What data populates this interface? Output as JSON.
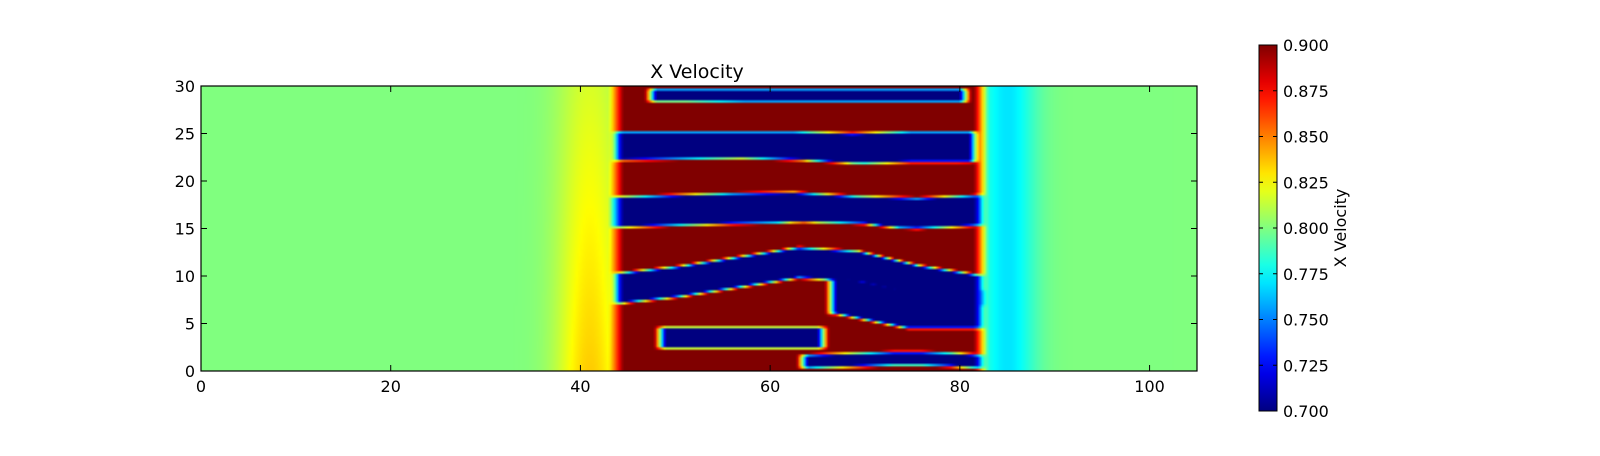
{
  "chart_data": {
    "type": "heatmap",
    "title": "X Velocity",
    "xlabel": "",
    "ylabel": "",
    "xlim": [
      0,
      105
    ],
    "ylim": [
      0,
      30
    ],
    "x_ticks": [
      0,
      20,
      40,
      60,
      80,
      100
    ],
    "y_ticks": [
      0,
      5,
      10,
      15,
      20,
      25,
      30
    ],
    "x_tick_labels": [
      "0",
      "20",
      "40",
      "60",
      "80",
      "100"
    ],
    "y_tick_labels": [
      "0",
      "5",
      "10",
      "15",
      "20",
      "25",
      "30"
    ],
    "grid": false,
    "colormap": "jet",
    "colorbar": {
      "label": "X Velocity",
      "vmin": 0.7,
      "vmax": 0.9,
      "ticks": [
        0.7,
        0.725,
        0.75,
        0.775,
        0.8,
        0.825,
        0.85,
        0.875,
        0.9
      ],
      "tick_labels": [
        "0.700",
        "0.725",
        "0.750",
        "0.775",
        "0.800",
        "0.825",
        "0.850",
        "0.875",
        "0.900"
      ]
    },
    "field": {
      "background_value": 0.8,
      "front_left_x": 44,
      "front_right_x": 82,
      "bands": [
        {
          "kind": "low",
          "value": 0.7,
          "x_start": 48,
          "x_end": 80,
          "y_center": [
            29.0,
            29.0,
            29.0,
            29.0,
            29.0,
            29.0,
            29.0
          ],
          "half_width": 0.7
        },
        {
          "kind": "high",
          "value": 0.9,
          "x_start": 45,
          "x_end": 82,
          "y_center": [
            26.6,
            26.6,
            26.5,
            26.5,
            26.5,
            26.4,
            26.4
          ],
          "half_width": 1.7
        },
        {
          "kind": "low",
          "value": 0.7,
          "x_start": 44,
          "x_end": 81,
          "y_center": [
            23.6,
            23.6,
            23.6,
            23.6,
            23.4,
            23.6,
            23.6
          ],
          "half_width": 1.6
        },
        {
          "kind": "high",
          "value": 0.9,
          "x_start": 44,
          "x_end": 83,
          "y_center": [
            20.3,
            20.4,
            20.5,
            20.3,
            19.8,
            19.6,
            20.0
          ],
          "half_width": 1.9
        },
        {
          "kind": "low",
          "value": 0.7,
          "x_start": 43,
          "x_end": 82,
          "y_center": [
            16.7,
            16.9,
            17.1,
            17.2,
            16.8,
            16.6,
            16.9
          ],
          "half_width": 1.6
        },
        {
          "kind": "high",
          "value": 0.9,
          "x_start": 44,
          "x_end": 83,
          "y_center": [
            13.3,
            13.4,
            13.6,
            14.2,
            14.0,
            13.0,
            12.5
          ],
          "half_width": 1.5
        },
        {
          "kind": "low",
          "value": 0.7,
          "x_start": 44,
          "x_end": 82,
          "y_center": [
            8.7,
            9.4,
            10.4,
            11.4,
            11.0,
            9.5,
            8.5
          ],
          "half_width": 1.6
        },
        {
          "kind": "high",
          "value": 0.9,
          "x_start": 44,
          "x_end": 82,
          "y_center": [
            4.5,
            5.0,
            6.0,
            6.5,
            5.0,
            4.2,
            3.7
          ],
          "half_width": 2.4
        },
        {
          "kind": "low",
          "value": 0.7,
          "x_start": 49,
          "x_end": 65,
          "y_center": [
            3.5,
            3.5,
            3.5,
            3.5,
            3.5,
            3.5,
            3.5
          ],
          "half_width": 1.1
        },
        {
          "kind": "low",
          "value": 0.7,
          "x_start": 67,
          "x_end": 82,
          "y_center": [
            8.0,
            7.5,
            7.0,
            6.5,
            6.5,
            6.5,
            6.5
          ],
          "half_width": 2.0
        },
        {
          "kind": "low",
          "value": 0.7,
          "x_start": 64,
          "x_end": 82,
          "y_center": [
            1.0,
            1.1,
            1.2,
            1.3,
            1.3,
            1.2,
            1.0
          ],
          "half_width": 0.7
        }
      ]
    }
  }
}
